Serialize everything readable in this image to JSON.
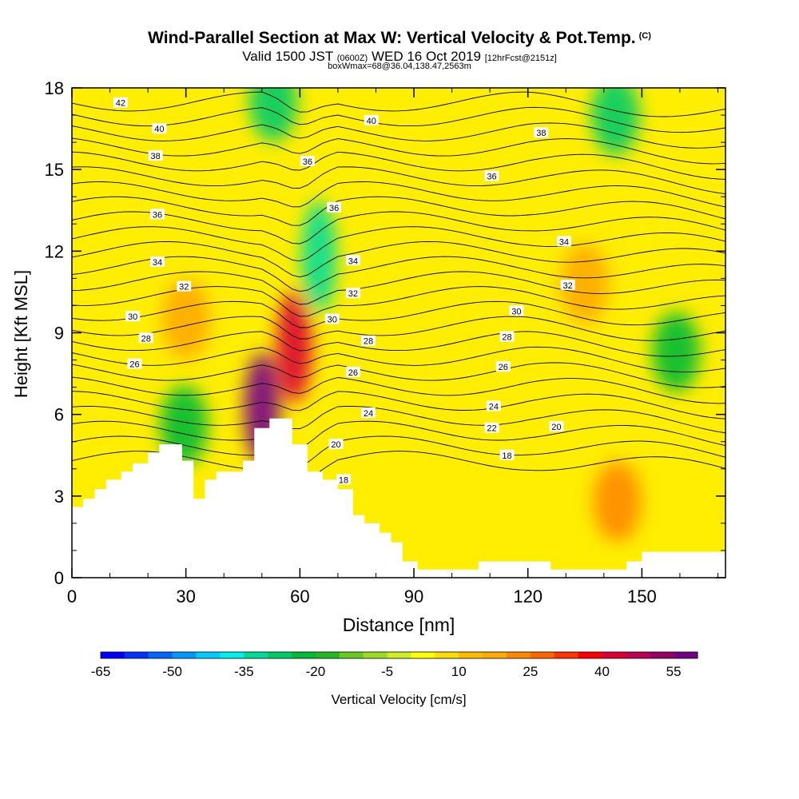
{
  "header": {
    "title": "Wind-Parallel Section at Max W: Vertical Velocity & Pot.Temp.",
    "copyright": "(C)",
    "subtitle_main_a": "Valid 1500 JST",
    "subtitle_z": "(0600Z)",
    "subtitle_main_b": "WED 16 Oct 2019",
    "subtitle_fcst": "[12hrFcst@2151z]",
    "box_info": "boxWmax=68@36.04,138.47,2563m"
  },
  "chart_data": {
    "type": "heatmap",
    "xlabel": "Distance [nm]",
    "ylabel": "Height [Kft MSL]",
    "xlim": [
      0,
      172
    ],
    "ylim": [
      0,
      18
    ],
    "x_ticks": [
      0,
      30,
      60,
      90,
      120,
      150
    ],
    "y_ticks": [
      0,
      3,
      6,
      9,
      12,
      15,
      18
    ],
    "colorbar": {
      "label": "Vertical Velocity [cm/s]",
      "tick_labels": [
        "-65",
        "-50",
        "-35",
        "-20",
        "-5",
        "10",
        "25",
        "40",
        "55"
      ],
      "levels": [
        -65,
        -60,
        -55,
        -50,
        -45,
        -40,
        -35,
        -30,
        -25,
        -20,
        -15,
        -10,
        -5,
        0,
        5,
        10,
        15,
        20,
        25,
        30,
        35,
        40,
        45,
        50,
        55,
        60
      ],
      "colors": [
        "#0000ff",
        "#0033ff",
        "#0066ff",
        "#0099ff",
        "#00ccff",
        "#00eeee",
        "#00dd99",
        "#00cc66",
        "#00bb33",
        "#22b822",
        "#66cc22",
        "#99dd22",
        "#ccee22",
        "#ffff00",
        "#ffdd00",
        "#ffbb00",
        "#ffaa00",
        "#ff8800",
        "#ff6600",
        "#ff3300",
        "#ff0000",
        "#dd0033",
        "#bb0055",
        "#990066",
        "#770088"
      ]
    },
    "contour_labels": [
      {
        "text": "42",
        "x": 12.8,
        "y": 17.45
      },
      {
        "text": "40",
        "x": 23,
        "y": 16.5
      },
      {
        "text": "38",
        "x": 22,
        "y": 15.5
      },
      {
        "text": "36",
        "x": 22.5,
        "y": 13.35
      },
      {
        "text": "34",
        "x": 22.5,
        "y": 11.6
      },
      {
        "text": "32",
        "x": 29.5,
        "y": 10.7
      },
      {
        "text": "30",
        "x": 16,
        "y": 9.6
      },
      {
        "text": "28",
        "x": 19.5,
        "y": 8.8
      },
      {
        "text": "26",
        "x": 16.5,
        "y": 7.85
      },
      {
        "text": "40",
        "x": 78.8,
        "y": 16.8
      },
      {
        "text": "38",
        "x": 123.5,
        "y": 16.35
      },
      {
        "text": "36",
        "x": 62,
        "y": 15.3
      },
      {
        "text": "36",
        "x": 69,
        "y": 13.6
      },
      {
        "text": "36",
        "x": 110.5,
        "y": 14.75
      },
      {
        "text": "34",
        "x": 74,
        "y": 11.65
      },
      {
        "text": "34",
        "x": 129.5,
        "y": 12.35
      },
      {
        "text": "32",
        "x": 74,
        "y": 10.45
      },
      {
        "text": "32",
        "x": 130.5,
        "y": 10.75
      },
      {
        "text": "30",
        "x": 68.5,
        "y": 9.5
      },
      {
        "text": "30",
        "x": 117,
        "y": 9.8
      },
      {
        "text": "28",
        "x": 78,
        "y": 8.7
      },
      {
        "text": "28",
        "x": 114.5,
        "y": 8.85
      },
      {
        "text": "26",
        "x": 74,
        "y": 7.55
      },
      {
        "text": "26",
        "x": 113.5,
        "y": 7.75
      },
      {
        "text": "24",
        "x": 78,
        "y": 6.05
      },
      {
        "text": "24",
        "x": 111,
        "y": 6.3
      },
      {
        "text": "22",
        "x": 110.5,
        "y": 5.5
      },
      {
        "text": "20",
        "x": 69.5,
        "y": 4.9
      },
      {
        "text": "20",
        "x": 127.5,
        "y": 5.55
      },
      {
        "text": "18",
        "x": 114.5,
        "y": 4.5
      },
      {
        "text": "18",
        "x": 71.5,
        "y": 3.6
      }
    ],
    "velocity_features": [
      {
        "kind": "updraft",
        "x": 50,
        "y": 6.2,
        "w": 55
      },
      {
        "kind": "updraft",
        "x": 58.5,
        "y": 8.5,
        "w": 40
      },
      {
        "kind": "updraft",
        "x": 30,
        "y": 9.5,
        "w": 18
      },
      {
        "kind": "updraft",
        "x": 143.5,
        "y": 2.8,
        "w": 22
      },
      {
        "kind": "updraft",
        "x": 135,
        "y": 10.8,
        "w": 16
      },
      {
        "kind": "downdraft",
        "x": 65,
        "y": 11.8,
        "w": -35
      },
      {
        "kind": "downdraft",
        "x": 53,
        "y": 17.5,
        "w": -28
      },
      {
        "kind": "downdraft",
        "x": 143,
        "y": 17,
        "w": -30
      },
      {
        "kind": "downdraft",
        "x": 159,
        "y": 8.3,
        "w": -25
      },
      {
        "kind": "downdraft",
        "x": 29.5,
        "y": 5.6,
        "w": -22
      }
    ],
    "terrain": [
      [
        0,
        2.6
      ],
      [
        3,
        2.6
      ],
      [
        3,
        2.9
      ],
      [
        6,
        2.9
      ],
      [
        6,
        3.25
      ],
      [
        9,
        3.25
      ],
      [
        9,
        3.6
      ],
      [
        13,
        3.6
      ],
      [
        13,
        3.9
      ],
      [
        16,
        3.9
      ],
      [
        16,
        4.2
      ],
      [
        20,
        4.2
      ],
      [
        20,
        4.6
      ],
      [
        23,
        4.6
      ],
      [
        23,
        4.9
      ],
      [
        29,
        4.9
      ],
      [
        29,
        4.3
      ],
      [
        32,
        4.3
      ],
      [
        32,
        2.9
      ],
      [
        35,
        2.9
      ],
      [
        35,
        3.6
      ],
      [
        38,
        3.6
      ],
      [
        38,
        3.9
      ],
      [
        45,
        3.9
      ],
      [
        45,
        4.3
      ],
      [
        48,
        4.3
      ],
      [
        48,
        5.5
      ],
      [
        52,
        5.5
      ],
      [
        52,
        5.85
      ],
      [
        58,
        5.85
      ],
      [
        58,
        4.9
      ],
      [
        62,
        4.9
      ],
      [
        62,
        3.9
      ],
      [
        66,
        3.9
      ],
      [
        66,
        3.6
      ],
      [
        70,
        3.6
      ],
      [
        70,
        3.25
      ],
      [
        74,
        3.25
      ],
      [
        74,
        2.3
      ],
      [
        77,
        2.3
      ],
      [
        77,
        2.0
      ],
      [
        81,
        2.0
      ],
      [
        81,
        1.65
      ],
      [
        84,
        1.65
      ],
      [
        84,
        1.3
      ],
      [
        87,
        1.3
      ],
      [
        87,
        0.6
      ],
      [
        91,
        0.6
      ],
      [
        91,
        0.3
      ],
      [
        107,
        0.3
      ],
      [
        107,
        0.6
      ],
      [
        126,
        0.6
      ],
      [
        126,
        0.3
      ],
      [
        146,
        0.3
      ],
      [
        146,
        0.6
      ],
      [
        150,
        0.6
      ],
      [
        150,
        0.95
      ],
      [
        172,
        0.95
      ],
      [
        172,
        0
      ],
      [
        0,
        0
      ]
    ]
  }
}
